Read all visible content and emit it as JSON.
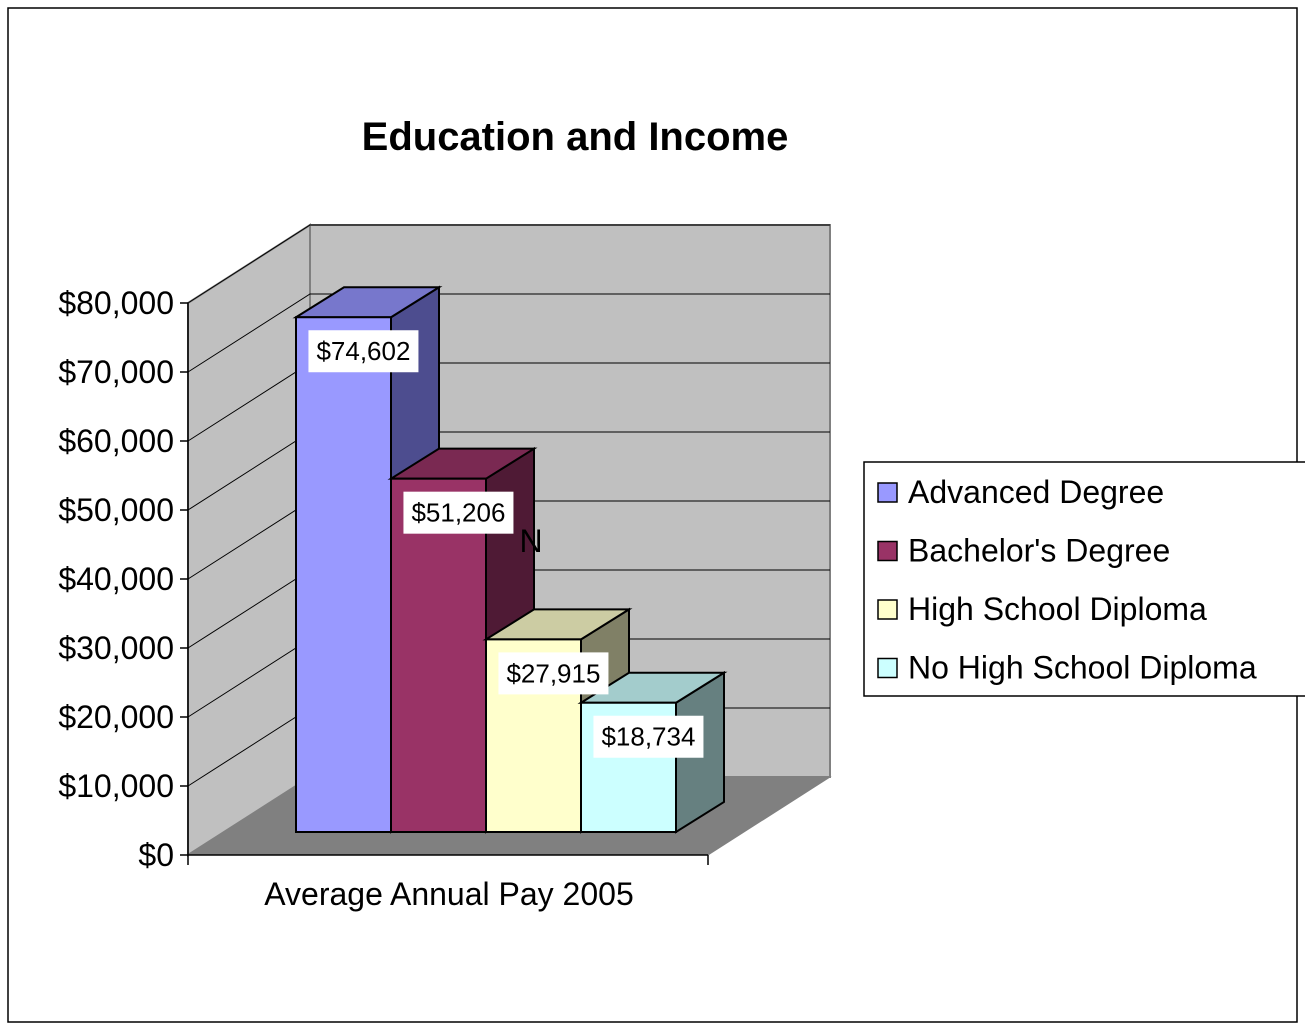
{
  "chart_data": {
    "type": "bar",
    "title": "Education and Income",
    "categories": [
      "Average Annual Pay 2005"
    ],
    "series": [
      {
        "name": "Advanced Degree",
        "values": [
          74602
        ],
        "label": "$74,602",
        "color": "#9999FF",
        "side": "#4D4D8F",
        "top": "#7777CC"
      },
      {
        "name": "Bachelor's Degree",
        "values": [
          51206
        ],
        "label": "$51,206",
        "color": "#993366",
        "side": "#4F1A35",
        "top": "#7A2952"
      },
      {
        "name": "High School Diploma",
        "values": [
          27915
        ],
        "label": "$27,915",
        "color": "#FFFFCC",
        "side": "#808066",
        "top": "#CCCCA3"
      },
      {
        "name": "No High School Diploma",
        "values": [
          18734
        ],
        "label": "$18,734",
        "color": "#CCFFFF",
        "side": "#668080",
        "top": "#A3CCCC"
      }
    ],
    "ylim": [
      0,
      80000
    ],
    "y_ticks": [
      0,
      10000,
      20000,
      30000,
      40000,
      50000,
      60000,
      70000,
      80000
    ],
    "y_tick_labels": [
      "$0",
      "$10,000",
      "$20,000",
      "$30,000",
      "$40,000",
      "$50,000",
      "$60,000",
      "$70,000",
      "$80,000"
    ],
    "annotation": "N",
    "grid": true,
    "legend_position": "right",
    "colors": {
      "back_wall": "#C0C0C0",
      "floor": "#808080"
    }
  }
}
